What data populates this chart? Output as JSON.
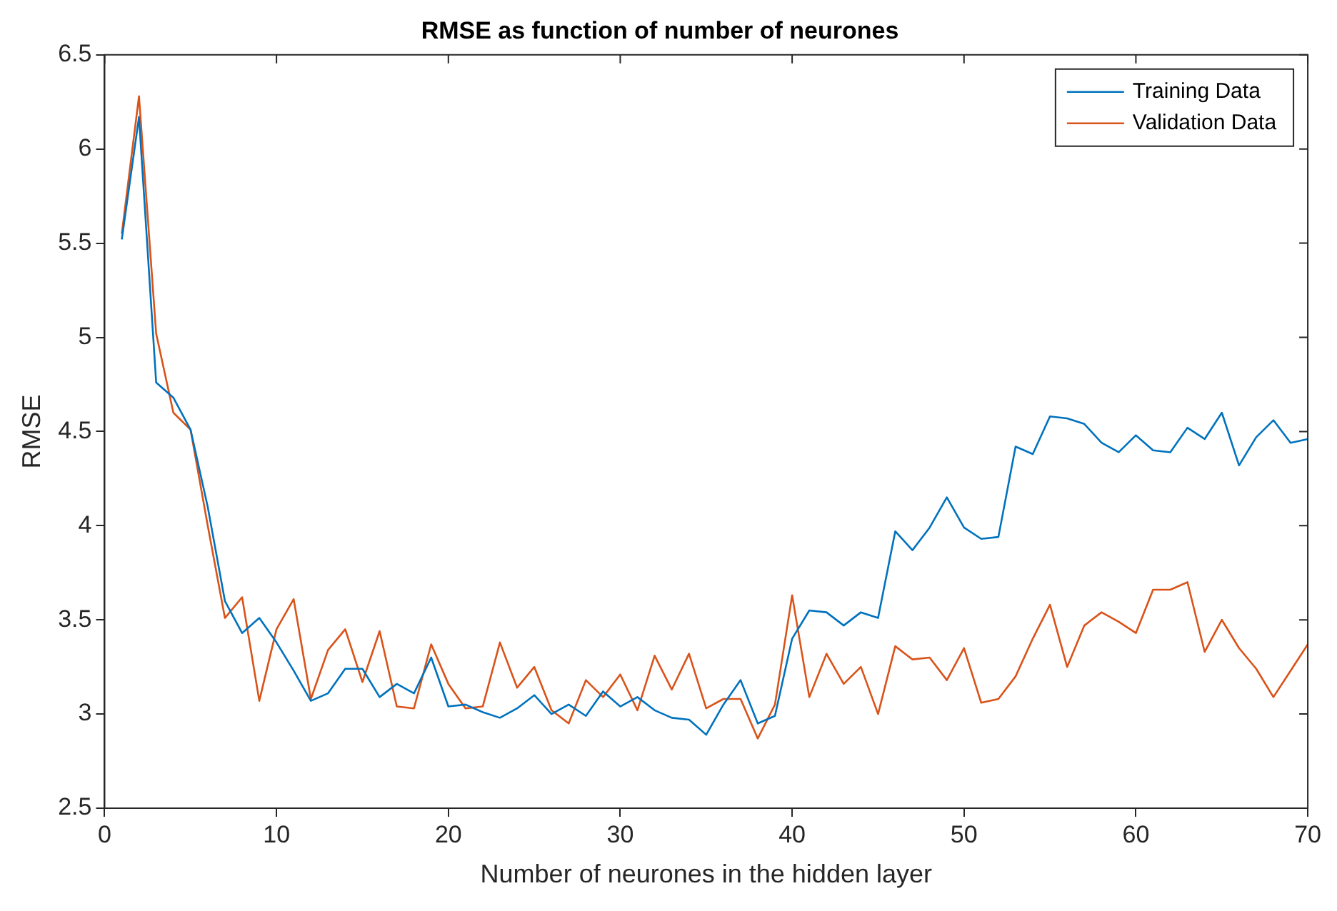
{
  "chart_data": {
    "type": "line",
    "title": "RMSE as function of number of neurones",
    "xlabel": "Number of neurones in the hidden layer",
    "ylabel": "RMSE",
    "x": [
      1,
      2,
      3,
      4,
      5,
      6,
      7,
      8,
      9,
      10,
      11,
      12,
      13,
      14,
      15,
      16,
      17,
      18,
      19,
      20,
      21,
      22,
      23,
      24,
      25,
      26,
      27,
      28,
      29,
      30,
      31,
      32,
      33,
      34,
      35,
      36,
      37,
      38,
      39,
      40,
      41,
      42,
      43,
      44,
      45,
      46,
      47,
      48,
      49,
      50,
      51,
      52,
      53,
      54,
      55,
      56,
      57,
      58,
      59,
      60,
      61,
      62,
      63,
      64,
      65,
      66,
      67,
      68,
      69,
      70
    ],
    "series": [
      {
        "name": "Training Data",
        "color": "#0072bd",
        "values": [
          5.52,
          6.17,
          4.76,
          4.68,
          4.51,
          4.1,
          3.6,
          3.43,
          3.51,
          3.38,
          3.23,
          3.07,
          3.11,
          3.24,
          3.24,
          3.09,
          3.16,
          3.11,
          3.3,
          3.04,
          3.05,
          3.01,
          2.98,
          3.03,
          3.1,
          3.0,
          3.05,
          2.99,
          3.12,
          3.04,
          3.09,
          3.02,
          2.98,
          2.97,
          2.89,
          3.05,
          3.18,
          2.95,
          2.99,
          3.4,
          3.55,
          3.54,
          3.47,
          3.54,
          3.51,
          3.97,
          3.87,
          3.99,
          4.15,
          3.99,
          3.93,
          3.94,
          4.42,
          4.38,
          4.58,
          4.57,
          4.54,
          4.44,
          4.39,
          4.48,
          4.4,
          4.39,
          4.52,
          4.46,
          4.6,
          4.32,
          4.47,
          4.56,
          4.44,
          4.46
        ]
      },
      {
        "name": "Validation Data",
        "color": "#d95319",
        "values": [
          5.55,
          6.28,
          5.02,
          4.6,
          4.51,
          4.0,
          3.51,
          3.62,
          3.07,
          3.45,
          3.61,
          3.08,
          3.34,
          3.45,
          3.17,
          3.44,
          3.04,
          3.03,
          3.37,
          3.16,
          3.03,
          3.04,
          3.38,
          3.14,
          3.25,
          3.02,
          2.95,
          3.18,
          3.09,
          3.21,
          3.02,
          3.31,
          3.13,
          3.32,
          3.03,
          3.08,
          3.08,
          2.87,
          3.05,
          3.63,
          3.09,
          3.32,
          3.16,
          3.25,
          3.0,
          3.36,
          3.29,
          3.3,
          3.18,
          3.35,
          3.06,
          3.08,
          3.2,
          3.4,
          3.58,
          3.25,
          3.47,
          3.54,
          3.49,
          3.43,
          3.66,
          3.66,
          3.7,
          3.33,
          3.5,
          3.35,
          3.24,
          3.09,
          3.23,
          3.37
        ]
      }
    ],
    "xlim": [
      0,
      70
    ],
    "xticks": [
      0,
      10,
      20,
      30,
      40,
      50,
      60,
      70
    ],
    "ylim": [
      2.5,
      6.5
    ],
    "yticks": [
      2.5,
      3,
      3.5,
      4,
      4.5,
      5,
      5.5,
      6,
      6.5
    ],
    "legend": "top right",
    "marker": "none",
    "line_style": "solid"
  }
}
